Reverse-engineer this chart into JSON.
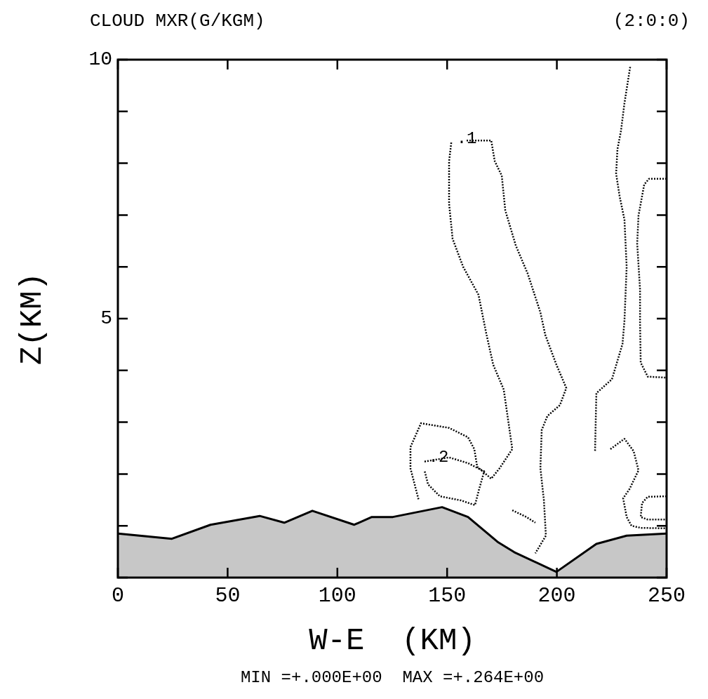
{
  "chart_data": {
    "type": "line",
    "title": "CLOUD MXR(G/KGM)",
    "subtitle": "(2:0:0)",
    "xlabel": "W-E  (KM)",
    "ylabel": "Z(KM)",
    "xlim": [
      0,
      250
    ],
    "ylim": [
      0,
      10
    ],
    "xticks": [
      0,
      50,
      100,
      150,
      200,
      250
    ],
    "yticks": [
      {
        "value": 0,
        "label": null
      },
      {
        "value": 1,
        "label": null
      },
      {
        "value": 2,
        "label": null
      },
      {
        "value": 3,
        "label": null
      },
      {
        "value": 4,
        "label": null
      },
      5,
      {
        "value": 6,
        "label": null
      },
      {
        "value": 7,
        "label": null
      },
      {
        "value": 8,
        "label": null
      },
      {
        "value": 9,
        "label": null
      },
      10
    ],
    "grid": false,
    "line_style": "dotted",
    "series": [
      {
        "type": "area",
        "line_style": "solid",
        "color": "#000000",
        "x": [
          0,
          24.6,
          42.2,
          64.6,
          75.8,
          88.6,
          107.7,
          115.7,
          125.3,
          147.7,
          159.5,
          173.3,
          180.6,
          199.8,
          218.0,
          231.8,
          250
        ],
        "values": [
          0.85,
          0.75,
          1.02,
          1.19,
          1.06,
          1.29,
          1.02,
          1.17,
          1.17,
          1.36,
          1.17,
          0.68,
          0.49,
          0.11,
          0.65,
          0.81,
          0.85
        ]
      },
      {
        "color": "#010101",
        "x": [
          151.9,
          150.9,
          150.9,
          152.5,
          157.3,
          164.3,
          167.8,
          171.0,
          175.8,
          179.7,
          173.9,
          170.1,
          163.7,
          162.4,
          159.5,
          150.9,
          138.1,
          133.3,
          133.3,
          137.1
        ],
        "values": [
          8.4,
          8.04,
          7.22,
          6.54,
          6.0,
          5.46,
          4.72,
          4.11,
          3.63,
          2.48,
          2.11,
          1.91,
          2.14,
          2.48,
          2.71,
          2.89,
          2.98,
          2.52,
          2.11,
          1.49
        ]
      },
      {
        "color": "#020202",
        "x": [
          158.9,
          170.1,
          171.7,
          174.9,
          176.5,
          181.3,
          186.7,
          192.5,
          194.7,
          199.8,
          204.3,
          201.4,
          195.7,
          193.1,
          192.5,
          194.1,
          195.0,
          190.2
        ],
        "values": [
          8.44,
          8.44,
          8.04,
          7.76,
          7.09,
          6.41,
          5.87,
          5.12,
          4.69,
          4.11,
          3.66,
          3.33,
          3.12,
          2.85,
          2.11,
          1.49,
          0.81,
          0.47
        ]
      },
      {
        "color": "#030303",
        "x": [
          139.7,
          150.9,
          159.5,
          166.9,
          164.6,
          162.7,
          156.3,
          146.7,
          141.3,
          139.7
        ],
        "values": [
          2.24,
          2.32,
          2.21,
          2.05,
          1.71,
          1.4,
          1.49,
          1.57,
          1.8,
          2.07
        ]
      },
      {
        "color": "#040404",
        "x": [
          179.7,
          186.1,
          190.2
        ],
        "values": [
          1.3,
          1.17,
          1.06
        ]
      },
      {
        "color": "#050505",
        "x": [
          233.4,
          230.8,
          229.2,
          227.6,
          227.0,
          228.6,
          230.8,
          231.8,
          230.8,
          229.9,
          225.1,
          218.0,
          217.4
        ],
        "values": [
          9.86,
          9.16,
          8.62,
          8.27,
          7.8,
          7.36,
          6.91,
          6.0,
          4.96,
          4.51,
          3.83,
          3.56,
          2.44
        ]
      },
      {
        "color": "#060606",
        "x": [
          250,
          242.0,
          239.8,
          237.2,
          236.6,
          237.9,
          237.9,
          238.2,
          241.4,
          250
        ],
        "values": [
          7.7,
          7.7,
          7.59,
          6.99,
          6.45,
          5.56,
          4.92,
          4.15,
          3.88,
          3.86
        ]
      },
      {
        "color": "#070707",
        "x": [
          224.4,
          230.8,
          235.0,
          237.2,
          233.1,
          230.2,
          231.8,
          234.0,
          238.2,
          250
        ],
        "values": [
          2.48,
          2.68,
          2.44,
          2.07,
          1.71,
          1.53,
          1.17,
          1.0,
          0.96,
          0.95
        ]
      },
      {
        "color": "#080808",
        "x": [
          250,
          241.4,
          238.8,
          238.2,
          241.4,
          250
        ],
        "values": [
          1.57,
          1.56,
          1.44,
          1.17,
          1.12,
          1.12
        ]
      }
    ],
    "annotations": [
      {
        "text": ".1",
        "x": 158.9,
        "y": 8.48
      },
      {
        "text": ".2",
        "x": 146.1,
        "y": 2.32
      },
      "MIN =+.000E+00  MAX =+.264E+00"
    ]
  }
}
